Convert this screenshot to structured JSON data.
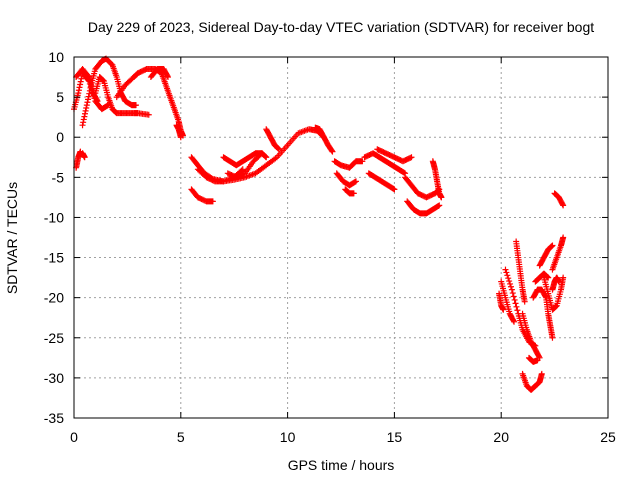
{
  "chart_data": {
    "type": "scatter",
    "title": "Day 229 of 2023, Sidereal Day-to-day VTEC variation (SDTVAR) for receiver bogt",
    "xlabel": "GPS time / hours",
    "ylabel": "SDTVAR / TECUs",
    "xlim": [
      0,
      25
    ],
    "ylim": [
      -35,
      10
    ],
    "xticks": [
      0,
      5,
      10,
      15,
      20,
      25
    ],
    "yticks": [
      10,
      5,
      0,
      -5,
      -10,
      -15,
      -20,
      -25,
      -30,
      -35
    ],
    "grid": true,
    "marker": "plus",
    "color": "#ff0000",
    "series": [
      {
        "tracks": [
          [
            [
              0.0,
              3.5
            ],
            [
              0.2,
              5.5
            ],
            [
              0.4,
              8.0
            ],
            [
              0.7,
              7.0
            ],
            [
              1.0,
              4.5
            ],
            [
              1.3,
              3.5
            ],
            [
              1.6,
              4.0
            ]
          ],
          [
            [
              0.1,
              -3.8
            ],
            [
              0.2,
              -2.5
            ],
            [
              0.3,
              -1.8
            ]
          ],
          [
            [
              0.4,
              -2.0
            ],
            [
              0.5,
              -2.5
            ]
          ],
          [
            [
              0.1,
              7.5
            ],
            [
              0.4,
              8.5
            ],
            [
              0.7,
              7.5
            ],
            [
              0.9,
              5.5
            ],
            [
              1.1,
              4.5
            ]
          ],
          [
            [
              0.4,
              1.5
            ],
            [
              0.6,
              4.0
            ],
            [
              0.8,
              6.5
            ],
            [
              1.0,
              8.5
            ],
            [
              1.3,
              9.5
            ],
            [
              1.5,
              9.8
            ],
            [
              1.8,
              9.0
            ],
            [
              2.0,
              7.5
            ],
            [
              2.2,
              5.5
            ],
            [
              2.4,
              4.5
            ],
            [
              2.7,
              4.0
            ],
            [
              2.9,
              4.0
            ]
          ],
          [
            [
              1.0,
              5.5
            ],
            [
              1.2,
              7.5
            ],
            [
              1.4,
              7.0
            ],
            [
              1.6,
              5.0
            ],
            [
              1.8,
              3.5
            ],
            [
              2.0,
              3.0
            ],
            [
              2.4,
              3.0
            ],
            [
              2.8,
              3.0
            ],
            [
              3.0,
              3.0
            ],
            [
              3.5,
              2.8
            ]
          ],
          [
            [
              2.0,
              5.0
            ],
            [
              2.4,
              6.5
            ],
            [
              2.8,
              7.5
            ],
            [
              3.0,
              8.0
            ],
            [
              3.4,
              8.5
            ],
            [
              3.8,
              8.5
            ],
            [
              4.1,
              8.0
            ],
            [
              4.3,
              6.5
            ],
            [
              4.5,
              5.0
            ],
            [
              4.7,
              3.5
            ],
            [
              4.9,
              2.0
            ],
            [
              5.0,
              0.8
            ],
            [
              5.1,
              0.2
            ]
          ],
          [
            [
              3.6,
              7.5
            ],
            [
              3.9,
              8.5
            ],
            [
              4.2,
              8.5
            ],
            [
              4.4,
              7.5
            ]
          ],
          [
            [
              4.8,
              1.5
            ],
            [
              4.9,
              1.0
            ],
            [
              5.0,
              0.0
            ]
          ],
          [
            [
              5.5,
              -2.5
            ],
            [
              5.8,
              -3.5
            ],
            [
              6.1,
              -4.5
            ],
            [
              6.5,
              -5.2
            ],
            [
              7.0,
              -5.5
            ],
            [
              7.5,
              -5.3
            ],
            [
              8.0,
              -5.0
            ],
            [
              8.5,
              -4.5
            ],
            [
              9.0,
              -3.5
            ],
            [
              9.5,
              -2.5
            ],
            [
              10.0,
              -1.0
            ],
            [
              10.5,
              0.5
            ],
            [
              11.0,
              1.0
            ],
            [
              11.4,
              0.8
            ],
            [
              11.7,
              0.0
            ]
          ],
          [
            [
              5.5,
              -6.5
            ],
            [
              5.8,
              -7.5
            ],
            [
              6.2,
              -8.0
            ],
            [
              6.5,
              -8.0
            ]
          ],
          [
            [
              5.8,
              -4.0
            ],
            [
              6.2,
              -5.0
            ],
            [
              6.6,
              -5.5
            ],
            [
              7.0,
              -5.5
            ],
            [
              7.5,
              -5.0
            ],
            [
              7.9,
              -4.0
            ]
          ],
          [
            [
              7.0,
              -2.5
            ],
            [
              7.3,
              -3.0
            ],
            [
              7.6,
              -3.5
            ],
            [
              7.9,
              -3.0
            ],
            [
              8.2,
              -2.5
            ],
            [
              8.5,
              -2.0
            ],
            [
              8.8,
              -2.0
            ],
            [
              9.0,
              -2.5
            ]
          ],
          [
            [
              7.2,
              -4.5
            ],
            [
              7.6,
              -5.0
            ],
            [
              8.0,
              -4.5
            ],
            [
              8.4,
              -3.0
            ],
            [
              8.8,
              -2.0
            ]
          ],
          [
            [
              9.0,
              1.0
            ],
            [
              9.2,
              0.0
            ],
            [
              9.4,
              -1.0
            ],
            [
              9.6,
              -1.5
            ]
          ],
          [
            [
              11.3,
              1.2
            ],
            [
              11.5,
              1.0
            ],
            [
              11.7,
              0.0
            ],
            [
              11.9,
              -1.0
            ],
            [
              12.1,
              -1.8
            ]
          ],
          [
            [
              12.2,
              -3.0
            ],
            [
              12.5,
              -3.5
            ],
            [
              12.9,
              -3.8
            ],
            [
              13.2,
              -3.0
            ],
            [
              13.5,
              -3.0
            ]
          ],
          [
            [
              12.3,
              -4.5
            ],
            [
              12.6,
              -5.5
            ],
            [
              12.9,
              -6.0
            ],
            [
              13.2,
              -5.5
            ]
          ],
          [
            [
              12.7,
              -6.5
            ],
            [
              12.9,
              -7.0
            ],
            [
              13.1,
              -7.0
            ]
          ],
          [
            [
              13.6,
              -2.5
            ],
            [
              14.0,
              -2.0
            ],
            [
              14.3,
              -2.5
            ],
            [
              14.6,
              -3.0
            ],
            [
              14.9,
              -3.5
            ],
            [
              15.2,
              -4.0
            ],
            [
              15.5,
              -4.5
            ]
          ],
          [
            [
              13.8,
              -4.5
            ],
            [
              14.1,
              -5.0
            ],
            [
              14.4,
              -5.5
            ],
            [
              14.7,
              -6.0
            ],
            [
              15.0,
              -6.5
            ]
          ],
          [
            [
              14.2,
              -1.5
            ],
            [
              14.6,
              -2.0
            ],
            [
              15.0,
              -2.5
            ],
            [
              15.4,
              -3.0
            ],
            [
              15.8,
              -2.5
            ]
          ],
          [
            [
              15.5,
              -5.0
            ],
            [
              15.8,
              -6.0
            ],
            [
              16.1,
              -7.0
            ],
            [
              16.5,
              -7.5
            ],
            [
              16.9,
              -7.0
            ],
            [
              17.1,
              -6.5
            ]
          ],
          [
            [
              15.6,
              -8.0
            ],
            [
              15.9,
              -9.0
            ],
            [
              16.2,
              -9.5
            ],
            [
              16.5,
              -9.5
            ],
            [
              16.8,
              -9.0
            ],
            [
              17.1,
              -8.5
            ]
          ],
          [
            [
              16.8,
              -3.0
            ],
            [
              16.9,
              -4.0
            ],
            [
              17.0,
              -5.5
            ],
            [
              17.1,
              -7.0
            ],
            [
              17.2,
              -7.5
            ]
          ],
          [
            [
              19.9,
              -19.5
            ],
            [
              20.0,
              -21.0
            ],
            [
              20.1,
              -21.5
            ]
          ],
          [
            [
              20.0,
              -18.0
            ],
            [
              20.2,
              -20.0
            ],
            [
              20.4,
              -22.0
            ],
            [
              20.6,
              -23.0
            ]
          ],
          [
            [
              20.2,
              -16.5
            ],
            [
              20.5,
              -19.0
            ],
            [
              20.8,
              -22.0
            ],
            [
              21.0,
              -24.0
            ],
            [
              21.3,
              -25.5
            ],
            [
              21.6,
              -26.0
            ]
          ],
          [
            [
              20.7,
              -13.0
            ],
            [
              20.8,
              -15.0
            ],
            [
              20.9,
              -17.0
            ],
            [
              21.0,
              -19.0
            ],
            [
              21.1,
              -20.5
            ]
          ],
          [
            [
              21.0,
              -22.0
            ],
            [
              21.2,
              -24.0
            ],
            [
              21.4,
              -25.5
            ],
            [
              21.6,
              -26.5
            ],
            [
              21.8,
              -27.5
            ]
          ],
          [
            [
              21.0,
              -29.5
            ],
            [
              21.2,
              -31.0
            ],
            [
              21.4,
              -31.5
            ],
            [
              21.6,
              -31.0
            ],
            [
              21.8,
              -30.5
            ],
            [
              21.9,
              -29.5
            ]
          ],
          [
            [
              21.5,
              -20.0
            ],
            [
              21.7,
              -19.0
            ],
            [
              21.9,
              -19.0
            ],
            [
              22.1,
              -20.0
            ],
            [
              22.2,
              -22.0
            ],
            [
              22.3,
              -23.5
            ],
            [
              22.4,
              -25.0
            ]
          ],
          [
            [
              21.6,
              -18.0
            ],
            [
              21.8,
              -17.5
            ],
            [
              22.0,
              -17.0
            ],
            [
              22.2,
              -17.5
            ]
          ],
          [
            [
              21.8,
              -16.0
            ],
            [
              22.0,
              -15.0
            ],
            [
              22.2,
              -14.0
            ],
            [
              22.4,
              -13.5
            ]
          ],
          [
            [
              22.0,
              -17.5
            ],
            [
              22.2,
              -19.5
            ],
            [
              22.4,
              -21.5
            ],
            [
              22.6,
              -21.0
            ],
            [
              22.8,
              -19.0
            ],
            [
              22.9,
              -17.5
            ]
          ],
          [
            [
              22.4,
              -16.5
            ],
            [
              22.6,
              -15.0
            ],
            [
              22.8,
              -13.5
            ],
            [
              22.9,
              -12.5
            ]
          ],
          [
            [
              22.4,
              -19.0
            ],
            [
              22.5,
              -18.0
            ],
            [
              22.6,
              -17.5
            ],
            [
              22.7,
              -18.0
            ]
          ],
          [
            [
              22.5,
              -7.0
            ],
            [
              22.7,
              -7.5
            ],
            [
              22.9,
              -8.5
            ]
          ],
          [
            [
              21.3,
              -27.5
            ],
            [
              21.5,
              -28.0
            ],
            [
              21.7,
              -27.8
            ]
          ]
        ]
      }
    ]
  }
}
